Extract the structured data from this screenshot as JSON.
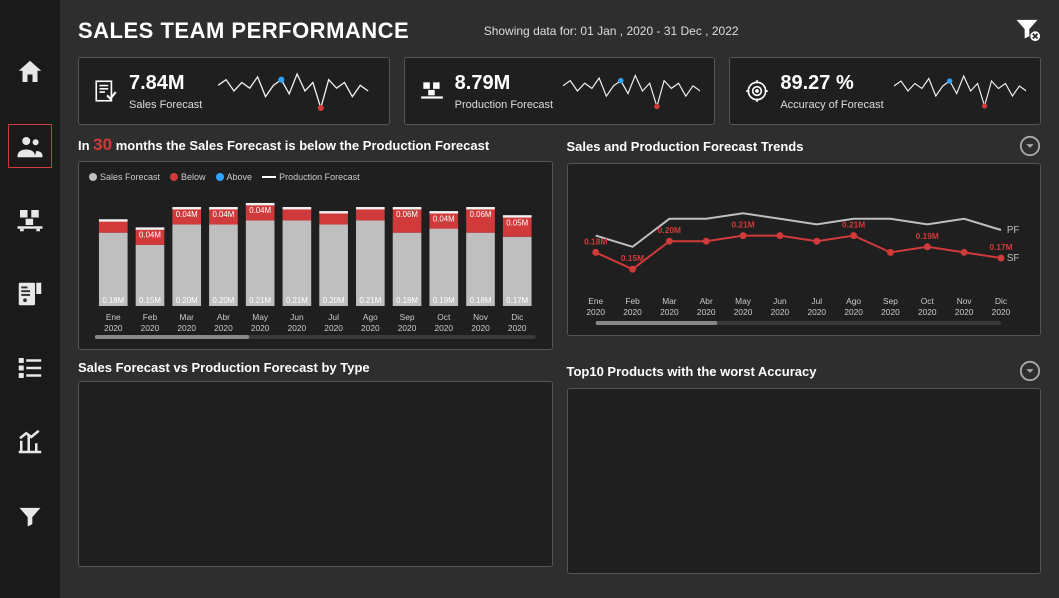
{
  "header": {
    "title": "SALES TEAM PERFORMANCE",
    "date_range": "Showing data for: 01 Jan , 2020 - 31 Dec , 2022"
  },
  "colors": {
    "bg": "#2e2e2e",
    "card": "#1f1f1f",
    "border": "#555555",
    "accent_red": "#d13a3a",
    "accent_blue": "#2ea3ff",
    "bar_gray": "#bfbfbf",
    "line_white": "#f2f2f2",
    "text": "#ffffff"
  },
  "kpis": {
    "sales": {
      "value": "7.84M",
      "label": "Sales Forecast"
    },
    "production": {
      "value": "8.79M",
      "label": "Production Forecast"
    },
    "accuracy": {
      "value": "89.27 %",
      "label": "Accuracy of Forecast"
    },
    "sparkline_points": [
      26,
      30,
      22,
      28,
      24,
      32,
      18,
      26,
      30,
      20,
      34,
      22,
      28,
      10,
      30,
      24,
      28,
      18,
      26,
      22
    ],
    "spark_marker_red_index": 13,
    "spark_marker_blue_index": 8
  },
  "bar_panel": {
    "prefix": "In ",
    "count": "30",
    "suffix": " months the Sales Forecast is below the Production Forecast",
    "legend": {
      "sales": "Sales Forecast",
      "below": "Below",
      "above": "Above",
      "production": "Production Forecast"
    },
    "type": "bar",
    "categories": [
      {
        "m": "Ene",
        "y": "2020"
      },
      {
        "m": "Feb",
        "y": "2020"
      },
      {
        "m": "Mar",
        "y": "2020"
      },
      {
        "m": "Abr",
        "y": "2020"
      },
      {
        "m": "May",
        "y": "2020"
      },
      {
        "m": "Jun",
        "y": "2020"
      },
      {
        "m": "Jul",
        "y": "2020"
      },
      {
        "m": "Ago",
        "y": "2020"
      },
      {
        "m": "Sep",
        "y": "2020"
      },
      {
        "m": "Oct",
        "y": "2020"
      },
      {
        "m": "Nov",
        "y": "2020"
      },
      {
        "m": "Dic",
        "y": "2020"
      }
    ],
    "sales_values": [
      0.18,
      0.15,
      0.2,
      0.2,
      0.21,
      0.21,
      0.2,
      0.21,
      0.18,
      0.19,
      0.18,
      0.17
    ],
    "delta_values": [
      0.03,
      0.04,
      0.04,
      0.04,
      0.04,
      0.03,
      0.03,
      0.03,
      0.06,
      0.04,
      0.06,
      0.05
    ],
    "delta_labels": [
      "",
      "0.04M",
      "0.04M",
      "0.04M",
      "0.04M",
      "",
      "",
      "",
      "0.06M",
      "0.04M",
      "0.06M",
      "0.05M"
    ],
    "bar_labels": [
      "0.18M",
      "0.15M",
      "0.20M",
      "0.20M",
      "0.21M",
      "0.21M",
      "0.20M",
      "0.21M",
      "0.18M",
      "0.19M",
      "0.18M",
      "0.17M"
    ],
    "production_line": [
      0.21,
      0.19,
      0.24,
      0.24,
      0.25,
      0.24,
      0.23,
      0.24,
      0.24,
      0.23,
      0.24,
      0.22
    ],
    "ylim": [
      0,
      0.27
    ],
    "bar_gray_color": "#bfbfbf",
    "delta_color": "#d13a3a",
    "line_color": "#f2f2f2",
    "scroll_thumb_ratio": 0.35
  },
  "line_panel": {
    "title": "Sales and Production Forecast Trends",
    "type": "line",
    "categories": [
      {
        "m": "Ene",
        "y": "2020"
      },
      {
        "m": "Feb",
        "y": "2020"
      },
      {
        "m": "Mar",
        "y": "2020"
      },
      {
        "m": "Abr",
        "y": "2020"
      },
      {
        "m": "May",
        "y": "2020"
      },
      {
        "m": "Jun",
        "y": "2020"
      },
      {
        "m": "Jul",
        "y": "2020"
      },
      {
        "m": "Ago",
        "y": "2020"
      },
      {
        "m": "Sep",
        "y": "2020"
      },
      {
        "m": "Oct",
        "y": "2020"
      },
      {
        "m": "Nov",
        "y": "2020"
      },
      {
        "m": "Dic",
        "y": "2020"
      }
    ],
    "pf_values": [
      0.21,
      0.19,
      0.24,
      0.24,
      0.25,
      0.24,
      0.23,
      0.24,
      0.24,
      0.23,
      0.24,
      0.22
    ],
    "sf_values": [
      0.18,
      0.15,
      0.2,
      0.2,
      0.21,
      0.21,
      0.2,
      0.21,
      0.18,
      0.19,
      0.18,
      0.17
    ],
    "labels": {
      "0": "0.18M",
      "1": "0.15M",
      "2": "0.20M",
      "4": "0.21M",
      "7": "0.21M",
      "9": "0.19M",
      "11": "0.17M"
    },
    "ylim": [
      0.12,
      0.27
    ],
    "pf_color": "#bfbfbf",
    "sf_color": "#d13a3a",
    "pf_label": "PF",
    "sf_label": "SF",
    "scroll_thumb_ratio": 0.3
  },
  "bottom_left": {
    "title": "Sales Forecast vs Production Forecast by Type"
  },
  "bottom_right": {
    "title": "Top10 Products with the worst Accuracy"
  }
}
